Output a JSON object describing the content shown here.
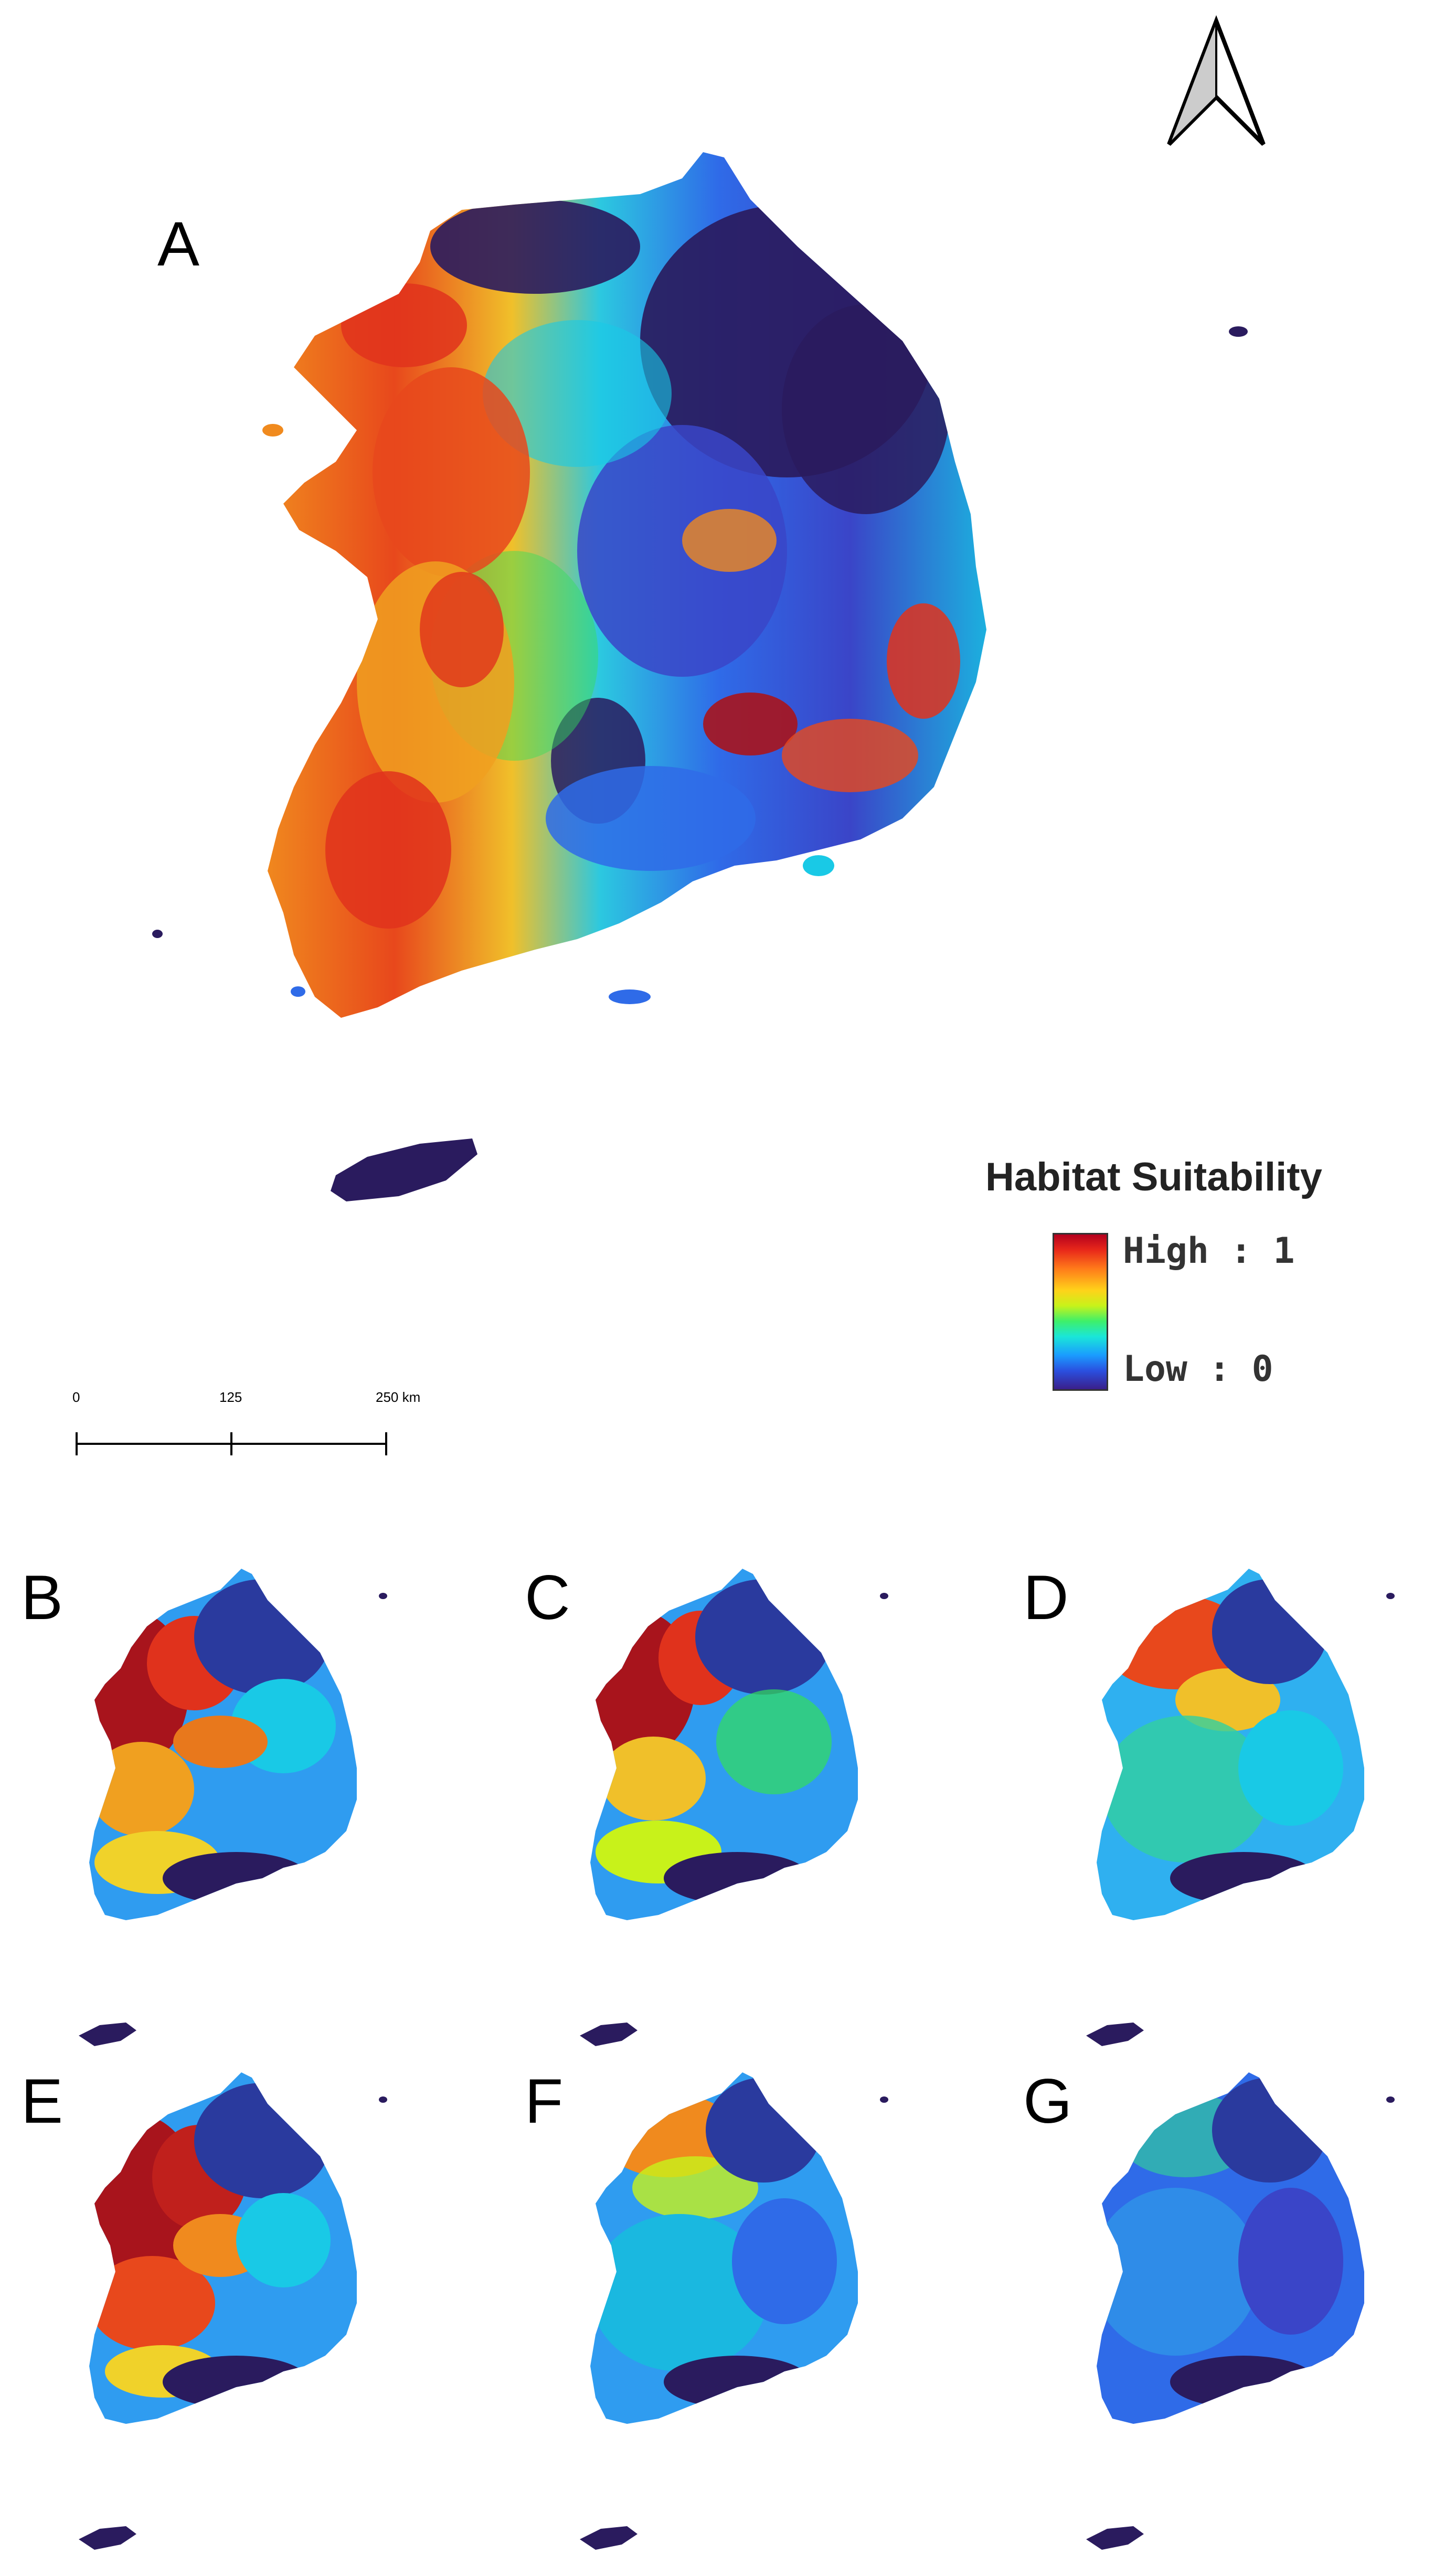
{
  "panels": {
    "a": "A",
    "b": "B",
    "c": "C",
    "d": "D",
    "e": "E",
    "f": "F",
    "g": "G"
  },
  "legend": {
    "title": "Habitat Suitability",
    "high": "High : 1",
    "low": "Low : 0"
  },
  "scale": {
    "t0": "0",
    "t1": "125",
    "t2": "250 km"
  },
  "colors": {
    "deep": "#2a1b5e",
    "blue": "#2f6be8",
    "cyan": "#19c9e6",
    "green": "#32e05a",
    "yellow": "#f0e22a",
    "orange": "#f58a1e",
    "red": "#e0321c",
    "darkred": "#a8141c"
  },
  "icons": {
    "north_arrow": "north-arrow-icon"
  }
}
